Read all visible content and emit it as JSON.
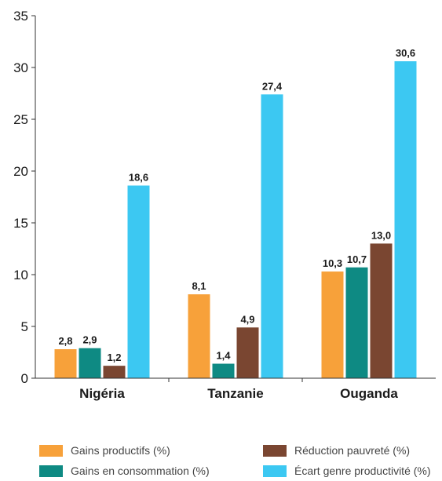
{
  "chart_data": {
    "type": "bar",
    "categories": [
      "Nigéria",
      "Tanzanie",
      "Ouganda"
    ],
    "series": [
      {
        "name": "Gains productifs (%)",
        "color": "#F7A13A",
        "values": [
          2.8,
          8.1,
          10.3
        ],
        "labels": [
          "2,8",
          "8,1",
          "10,3"
        ]
      },
      {
        "name": "Gains en consommation (%)",
        "color": "#0E8A83",
        "values": [
          2.9,
          1.4,
          10.7
        ],
        "labels": [
          "2,9",
          "1,4",
          "10,7"
        ]
      },
      {
        "name": "Réduction pauvreté (%)",
        "color": "#7A4631",
        "values": [
          1.2,
          4.9,
          13.0
        ],
        "labels": [
          "1,2",
          "4,9",
          "13,0"
        ]
      },
      {
        "name": "Écart genre productivité (%)",
        "color": "#3CC8F2",
        "values": [
          18.6,
          27.4,
          30.6
        ],
        "labels": [
          "18,6",
          "27,4",
          "30,6"
        ]
      }
    ],
    "yticks": [
      0,
      5,
      10,
      15,
      20,
      25,
      30,
      35
    ],
    "ylim": [
      0,
      35
    ],
    "grid": false,
    "legend_position": "bottom"
  }
}
